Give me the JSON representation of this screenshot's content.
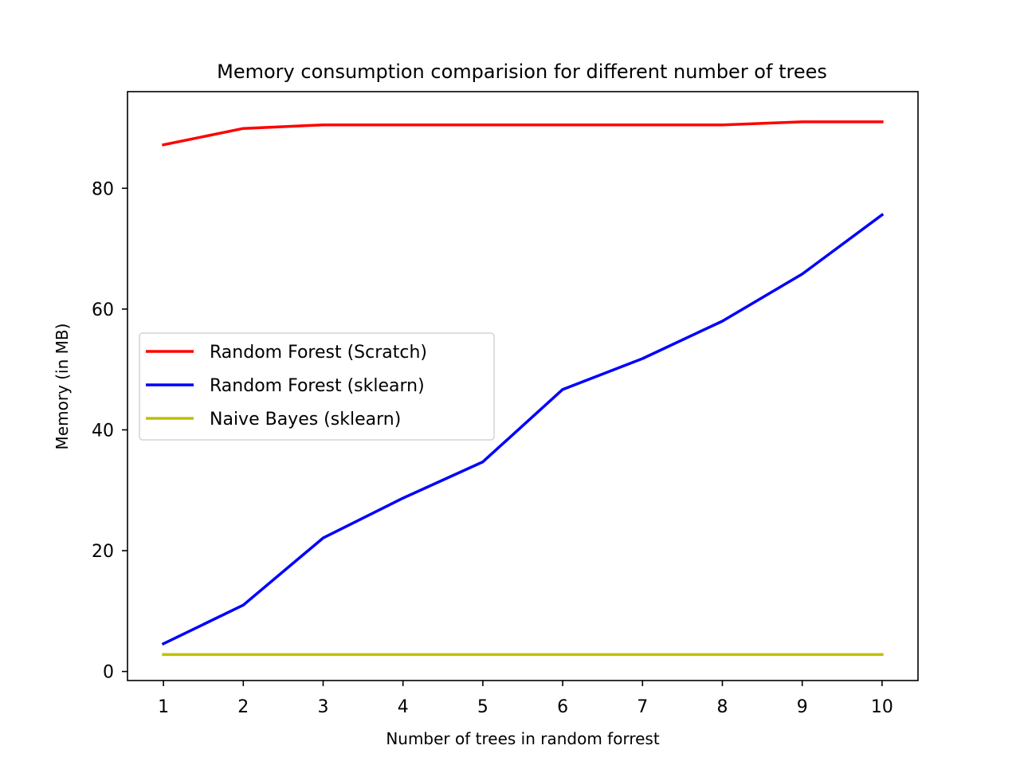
{
  "chart_data": {
    "type": "line",
    "title": "Memory consumption comparision for different number of trees",
    "xlabel": "Number of trees in random forrest",
    "ylabel": "Memory (in MB)",
    "x": [
      1,
      2,
      3,
      4,
      5,
      6,
      7,
      8,
      9,
      10
    ],
    "xticks": [
      1,
      2,
      3,
      4,
      5,
      6,
      7,
      8,
      9,
      10
    ],
    "yticks": [
      0,
      20,
      40,
      60,
      80
    ],
    "xlim": [
      0.55,
      10.45
    ],
    "ylim": [
      -1.5,
      96
    ],
    "grid": false,
    "legend_position": "center-left",
    "series": [
      {
        "name": "Random Forest (Scratch)",
        "color": "#ff0000",
        "values": [
          87.2,
          89.9,
          90.5,
          90.5,
          90.5,
          90.5,
          90.5,
          90.5,
          91.0,
          91.0
        ]
      },
      {
        "name": "Random Forest (sklearn)",
        "color": "#0000ff",
        "values": [
          4.6,
          11.0,
          22.1,
          28.7,
          34.7,
          46.7,
          51.8,
          58.0,
          65.8,
          75.6
        ]
      },
      {
        "name": "Naive Bayes (sklearn)",
        "color": "#bfbf00",
        "values": [
          2.8,
          2.8,
          2.8,
          2.8,
          2.8,
          2.8,
          2.8,
          2.8,
          2.8,
          2.8
        ]
      }
    ]
  }
}
